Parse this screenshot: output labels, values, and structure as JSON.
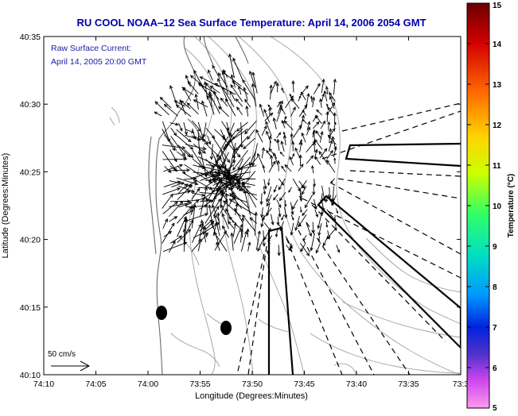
{
  "title": "RU COOL  NOAA‒12  Sea Surface Temperature:  April 14, 2006 2054 GMT",
  "legend_label_1": "Raw Surface Current:",
  "legend_label_2": "April 14, 2005 20:00 GMT",
  "scale_label": "50 cm/s",
  "xlabel": "Longitude (Degrees:Minutes)",
  "ylabel": "Latitude (Degrees:Minutes)",
  "x_ticks": [
    "74:10",
    "74:05",
    "74:00",
    "73:55",
    "73:50",
    "73:45",
    "73:40",
    "73:35",
    "73:3"
  ],
  "y_ticks": [
    "40:35",
    "40:30",
    "40:25",
    "40:20",
    "40:15",
    "40:10"
  ],
  "colorbar": {
    "label": "Temperature (°C)",
    "ticks": [
      "15",
      "14",
      "13",
      "12",
      "11",
      "10",
      "9",
      "8",
      "7",
      "6",
      "5"
    ],
    "min": 5,
    "max": 15
  },
  "colors": {
    "title": "#0000aa",
    "annotation": "#1a1aa8",
    "frame": "#000000",
    "contour": "#9a9a9a",
    "coast": "#666666"
  }
}
